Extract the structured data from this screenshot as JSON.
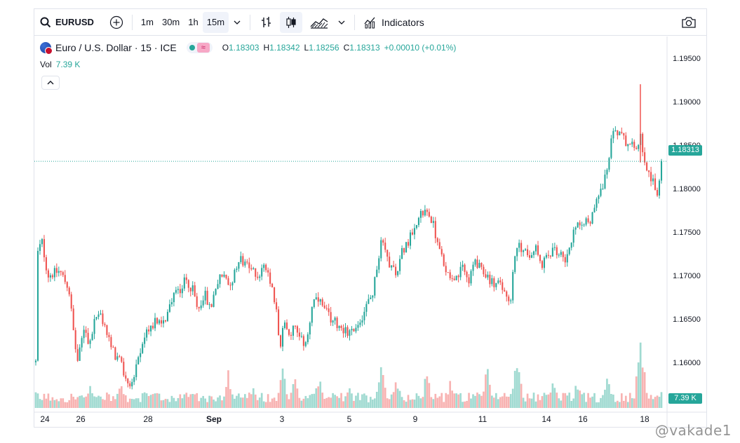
{
  "toolbar": {
    "symbol": "EURUSD",
    "intervals": [
      "1m",
      "30m",
      "1h",
      "15m"
    ],
    "active_interval": "15m",
    "indicators_label": "Indicators"
  },
  "legend": {
    "title": "Euro / U.S. Dollar · 15 · ICE",
    "open_label": "O",
    "open": "1.18303",
    "high_label": "H",
    "high": "1.18342",
    "low_label": "L",
    "low": "1.18256",
    "close_label": "C",
    "close": "1.18313",
    "change": "+0.00010 (+0.01%)",
    "vol_label": "Vol",
    "vol_value": "7.39 K"
  },
  "price_labels": {
    "last_price": "1.18313",
    "last_volume": "7.39 K"
  },
  "watermark": "@vakade1",
  "colors": {
    "up": "#26a69a",
    "down": "#ef5350",
    "up_volume": "#8fd3c9",
    "down_volume": "#f7a6a4",
    "text": "#131722",
    "border": "#e0e3eb"
  },
  "chart_data": {
    "type": "candlestick",
    "x_tick_labels": [
      "24",
      "26",
      "28",
      "Sep",
      "3",
      "5",
      "9",
      "11",
      "14",
      "16",
      "18"
    ],
    "y_tick_labels": [
      "1.16000",
      "1.16500",
      "1.17000",
      "1.17500",
      "1.18000",
      "1.18500",
      "1.19000",
      "1.19500"
    ],
    "ylim": [
      1.1545,
      1.1975
    ],
    "last_price": 1.18313,
    "price_path": [
      [
        0,
        1.16
      ],
      [
        0.3,
        1.1725
      ],
      [
        1,
        1.174
      ],
      [
        2,
        1.17
      ],
      [
        4,
        1.1705
      ],
      [
        5.5,
        1.1685
      ],
      [
        6.5,
        1.162
      ],
      [
        7,
        1.16
      ],
      [
        8,
        1.164
      ],
      [
        9,
        1.162
      ],
      [
        10,
        1.1655
      ],
      [
        11,
        1.165
      ],
      [
        12,
        1.163
      ],
      [
        13,
        1.161
      ],
      [
        14,
        1.16
      ],
      [
        15,
        1.158
      ],
      [
        16,
        1.1575
      ],
      [
        17,
        1.16
      ],
      [
        18,
        1.163
      ],
      [
        19,
        1.164
      ],
      [
        20,
        1.165
      ],
      [
        21,
        1.164
      ],
      [
        22,
        1.166
      ],
      [
        23,
        1.168
      ],
      [
        24,
        1.1685
      ],
      [
        25,
        1.1695
      ],
      [
        26,
        1.1685
      ],
      [
        27,
        1.166
      ],
      [
        28,
        1.168
      ],
      [
        29,
        1.166
      ],
      [
        30,
        1.169
      ],
      [
        31,
        1.17
      ],
      [
        32,
        1.169
      ],
      [
        33,
        1.17
      ],
      [
        34,
        1.172
      ],
      [
        35,
        1.171
      ],
      [
        36,
        1.1705
      ],
      [
        37,
        1.17
      ],
      [
        38,
        1.171
      ],
      [
        39,
        1.169
      ],
      [
        40,
        1.166
      ],
      [
        40.6,
        1.162
      ],
      [
        41.5,
        1.165
      ],
      [
        42,
        1.163
      ],
      [
        43,
        1.164
      ],
      [
        44,
        1.1625
      ],
      [
        45,
        1.162
      ],
      [
        46,
        1.167
      ],
      [
        47,
        1.167
      ],
      [
        48,
        1.166
      ],
      [
        49,
        1.165
      ],
      [
        50,
        1.1645
      ],
      [
        51,
        1.164
      ],
      [
        52,
        1.163
      ],
      [
        53,
        1.164
      ],
      [
        54,
        1.165
      ],
      [
        55,
        1.1665
      ],
      [
        56,
        1.168
      ],
      [
        57,
        1.172
      ],
      [
        57.5,
        1.175
      ],
      [
        58,
        1.173
      ],
      [
        59,
        1.171
      ],
      [
        60,
        1.1705
      ],
      [
        61,
        1.173
      ],
      [
        62,
        1.174
      ],
      [
        63,
        1.176
      ],
      [
        64,
        1.177
      ],
      [
        65,
        1.1775
      ],
      [
        66,
        1.176
      ],
      [
        67,
        1.173
      ],
      [
        68,
        1.171
      ],
      [
        69,
        1.17
      ],
      [
        70,
        1.1695
      ],
      [
        71,
        1.171
      ],
      [
        72,
        1.169
      ],
      [
        73,
        1.172
      ],
      [
        74,
        1.1705
      ],
      [
        75,
        1.17
      ],
      [
        76,
        1.169
      ],
      [
        77,
        1.169
      ],
      [
        78,
        1.168
      ],
      [
        79,
        1.167
      ],
      [
        79.5,
        1.172
      ],
      [
        80,
        1.1735
      ],
      [
        81,
        1.173
      ],
      [
        82,
        1.1725
      ],
      [
        83,
        1.1735
      ],
      [
        84,
        1.171
      ],
      [
        85,
        1.172
      ],
      [
        86,
        1.173
      ],
      [
        87,
        1.1725
      ],
      [
        88,
        1.172
      ],
      [
        89,
        1.174
      ],
      [
        90,
        1.176
      ],
      [
        91,
        1.1765
      ],
      [
        92,
        1.176
      ],
      [
        93,
        1.178
      ],
      [
        94,
        1.18
      ],
      [
        95,
        1.182
      ],
      [
        96,
        1.187
      ],
      [
        97,
        1.1865
      ],
      [
        98,
        1.1855
      ],
      [
        99,
        1.185
      ],
      [
        100,
        1.1845
      ],
      [
        100.5,
        1.186
      ],
      [
        101,
        1.183
      ],
      [
        102,
        1.1815
      ],
      [
        103,
        1.18
      ],
      [
        103.4,
        1.179
      ],
      [
        104,
        1.183
      ]
    ],
    "volume_spikes": [
      [
        9,
        0.22
      ],
      [
        14,
        0.25
      ],
      [
        25,
        0.2
      ],
      [
        32,
        0.35
      ],
      [
        36,
        0.22
      ],
      [
        41,
        0.4
      ],
      [
        43,
        0.3
      ],
      [
        47,
        0.33
      ],
      [
        52,
        0.25
      ],
      [
        57.5,
        0.55
      ],
      [
        60,
        0.3
      ],
      [
        65,
        0.35
      ],
      [
        69,
        0.3
      ],
      [
        75,
        0.45
      ],
      [
        80,
        0.58
      ],
      [
        86,
        0.3
      ],
      [
        90,
        0.28
      ],
      [
        95,
        0.3
      ],
      [
        100.5,
        0.85
      ],
      [
        104,
        0.22
      ]
    ]
  }
}
